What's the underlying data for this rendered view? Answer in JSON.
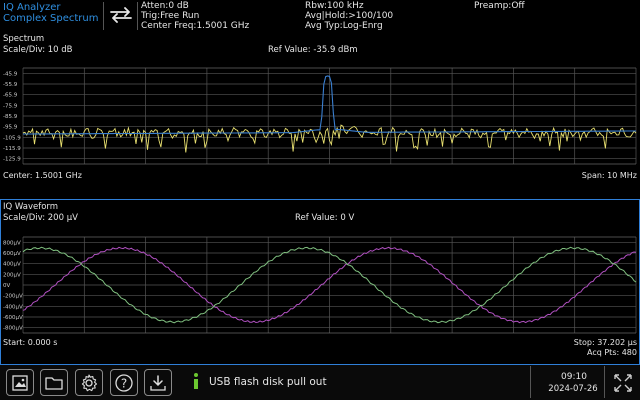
{
  "header": {
    "title_line1": "IQ Analyzer",
    "title_line2": "Complex Spectrum",
    "atten": "Atten:0 dB",
    "trig": "Trig:Free Run",
    "center_freq": "Center Freq:1.5001 GHz",
    "rbw": "Rbw:100 kHz",
    "avg_hold": "Avg|Hold:>100/100",
    "avg_type": "Avg Typ:Log-Enrg",
    "preamp": "Preamp:Off"
  },
  "spectrum": {
    "title": "Spectrum",
    "scale": "Scale/Div: 10 dB",
    "ref_value": "Ref Value: -35.9 dBm",
    "y_ticks": [
      "-45.9",
      "-55.9",
      "-65.9",
      "-75.9",
      "-85.9",
      "-95.9",
      "-105.9",
      "-115.9",
      "-125.9"
    ],
    "center": "Center: 1.5001 GHz",
    "span": "Span: 10 MHz",
    "colors": {
      "trace_yellow": "#e8e070",
      "trace_blue": "#3a7fd0"
    }
  },
  "iq_waveform": {
    "title": "IQ Waveform",
    "scale": "Scale/Div: 200 µV",
    "ref_value": "Ref Value: 0 V",
    "y_ticks": [
      "800µV",
      "600µV",
      "400µV",
      "200µV",
      "0V",
      "-200µV",
      "-400µV",
      "-600µV",
      "-800µV"
    ],
    "start": "Start: 0.000 s",
    "stop": "Stop: 37.202 µs",
    "acq_pts": "Acq Pts: 480",
    "colors": {
      "i_trace": "#b050c0",
      "q_trace": "#80c080"
    }
  },
  "bottom": {
    "status_message": "USB flash disk pull out",
    "time": "09:10",
    "date": "2024-07-26",
    "icons": [
      "screenshot-icon",
      "folder-icon",
      "settings-icon",
      "help-icon",
      "save-download-icon",
      "info-icon",
      "fullscreen-icon"
    ]
  }
}
